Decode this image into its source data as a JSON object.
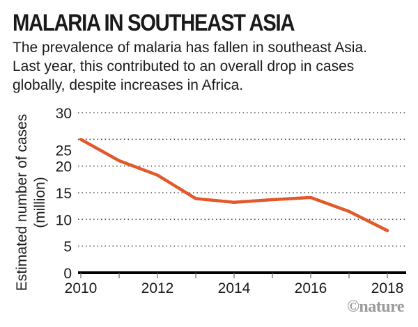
{
  "header": {
    "title": "MALARIA IN SOUTHEAST ASIA",
    "subtitle_lines": [
      "The prevalence of malaria has fallen in southeast Asia.",
      "Last year, this contributed to an overall drop in cases",
      "globally, despite increases in Africa."
    ]
  },
  "credit": "©nature",
  "chart_data": {
    "type": "line",
    "title": "MALARIA IN SOUTHEAST ASIA",
    "xlabel": "",
    "ylabel": "Estimated number of cases (million)",
    "ylabel_lines": [
      "Estimated number of cases",
      "(million)"
    ],
    "x": [
      2010,
      2011,
      2012,
      2013,
      2014,
      2015,
      2016,
      2017,
      2018
    ],
    "series": [
      {
        "name": "Southeast Asia",
        "color": "#e3582a",
        "values": [
          25.0,
          21.0,
          18.3,
          13.9,
          13.2,
          13.7,
          14.1,
          11.5,
          7.9
        ]
      }
    ],
    "xlim": [
      2010,
      2018
    ],
    "ylim": [
      0,
      30
    ],
    "yticks": [
      0,
      5,
      10,
      15,
      20,
      25,
      30
    ],
    "ytick_labels": [
      "0",
      "5",
      "10",
      "15",
      "20",
      "25",
      "30"
    ],
    "xticks_minor": [
      2010,
      2011,
      2012,
      2013,
      2014,
      2015,
      2016,
      2017,
      2018
    ],
    "xtick_labels": [
      "2010",
      "2012",
      "2014",
      "2016",
      "2018"
    ],
    "xtick_label_values": [
      2010,
      2012,
      2014,
      2016,
      2018
    ],
    "grid": "horizontal dotted",
    "legend": "none"
  }
}
